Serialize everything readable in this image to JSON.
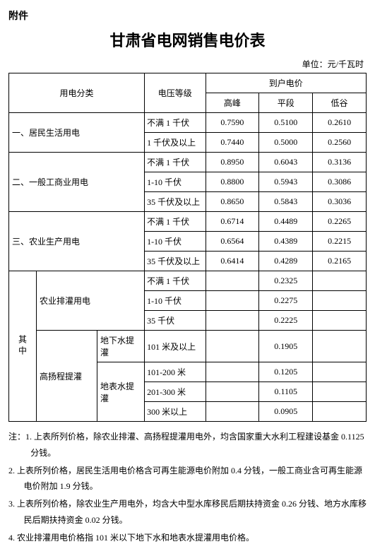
{
  "attachment_label": "附件",
  "title": "甘肃省电网销售电价表",
  "unit_label": "单位：元/千瓦时",
  "header": {
    "category": "用电分类",
    "voltage": "电压等级",
    "household": "到户电价",
    "peak": "高峰",
    "flat": "平段",
    "valley": "低谷"
  },
  "cat1": {
    "name": "一、居民生活用电",
    "r1": {
      "volt": "不满 1 千伏",
      "peak": "0.7590",
      "flat": "0.5100",
      "valley": "0.2610"
    },
    "r2": {
      "volt": "1 千伏及以上",
      "peak": "0.7440",
      "flat": "0.5000",
      "valley": "0.2560"
    }
  },
  "cat2": {
    "name": "二、一般工商业用电",
    "r1": {
      "volt": "不满 1 千伏",
      "peak": "0.8950",
      "flat": "0.6043",
      "valley": "0.3136"
    },
    "r2": {
      "volt": "1-10 千伏",
      "peak": "0.8800",
      "flat": "0.5943",
      "valley": "0.3086"
    },
    "r3": {
      "volt": "35 千伏及以上",
      "peak": "0.8650",
      "flat": "0.5843",
      "valley": "0.3036"
    }
  },
  "cat3": {
    "name": "三、农业生产用电",
    "r1": {
      "volt": "不满 1 千伏",
      "peak": "0.6714",
      "flat": "0.4489",
      "valley": "0.2265"
    },
    "r2": {
      "volt": "1-10 千伏",
      "peak": "0.6564",
      "flat": "0.4389",
      "valley": "0.2215"
    },
    "r3": {
      "volt": "35 千伏及以上",
      "peak": "0.6414",
      "flat": "0.4289",
      "valley": "0.2165"
    }
  },
  "sub": {
    "group_label": "其中",
    "irrigation_label": "农业排灌用电",
    "ir_r1": {
      "volt": "不满 1 千伏",
      "flat": "0.2325"
    },
    "ir_r2": {
      "volt": "1-10 千伏",
      "flat": "0.2275"
    },
    "ir_r3": {
      "volt": "35 千伏",
      "flat": "0.2225"
    },
    "highlift_label": "高扬程提灌",
    "underground_label": "地下水提灌",
    "surface_label": "地表水提灌",
    "hl_r1": {
      "volt": "101 米及以上",
      "flat": "0.1905"
    },
    "hl_r2": {
      "volt": "101-200 米",
      "flat": "0.1205"
    },
    "hl_r3": {
      "volt": "201-300 米",
      "flat": "0.1105"
    },
    "hl_r4": {
      "volt": "300 米以上",
      "flat": "0.0905"
    }
  },
  "notes": {
    "prefix": "注：",
    "n1": "1. 上表所列价格，除农业排灌、高扬程提灌用电外，均含国家重大水利工程建设基金 0.1125 分钱。",
    "n2": "2. 上表所列价格，居民生活用电价格含可再生能源电价附加 0.4 分钱，一般工商业含可再生能源电价附加 1.9 分钱。",
    "n3": "3. 上表所列价格，除农业生产用电外，均含大中型水库移民后期扶持资金 0.26 分钱、地方水库移民后期扶持资金 0.02 分钱。",
    "n4": "4. 农业排灌用电价格指 101 米以下地下水和地表水提灌用电价格。"
  },
  "col_widths": {
    "c1": "22px",
    "c2": "90px",
    "c3": "70px",
    "c4": "90px",
    "c5": "78px",
    "c6": "78px",
    "c7": "78px"
  }
}
